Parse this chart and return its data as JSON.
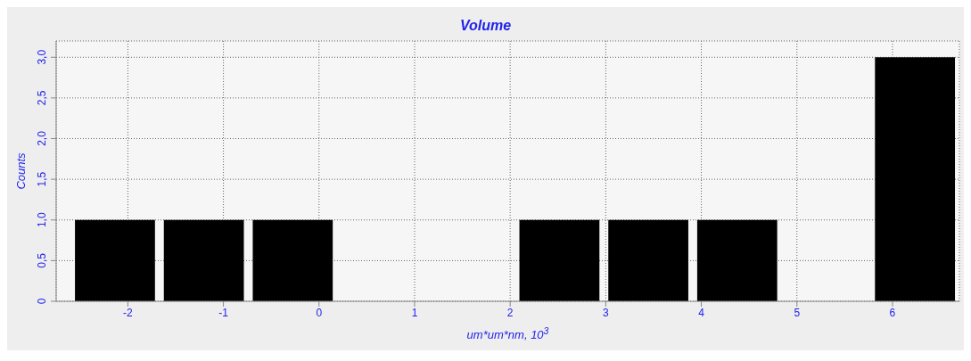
{
  "chart_data": {
    "type": "histogram",
    "title": "Volume",
    "xlabel": "um*um*nm, 10$^{3}$",
    "ylabel": "Counts",
    "bins": [
      -2.6,
      -1.67,
      -0.74,
      0.19,
      1.12,
      2.05,
      2.98,
      3.91,
      4.84,
      5.77,
      6.7
    ],
    "values": [
      1,
      1,
      1,
      0,
      0,
      1,
      1,
      1,
      0,
      3
    ],
    "color": "#000000",
    "xlim": [
      -2.75,
      6.7
    ],
    "xticks": [
      -2,
      -1,
      0,
      1,
      2,
      3,
      4,
      5,
      6
    ],
    "ylim": [
      0,
      3.2
    ],
    "yticks": [
      0,
      {
        "value": 0.5,
        "label": "0,5"
      },
      {
        "value": 1,
        "label": "1,0"
      },
      {
        "value": 1.5,
        "label": "1,5"
      },
      {
        "value": 2,
        "label": "2,0"
      },
      {
        "value": 2.5,
        "label": "2,5"
      },
      {
        "value": 3,
        "label": "3,0"
      }
    ],
    "grid": true
  }
}
